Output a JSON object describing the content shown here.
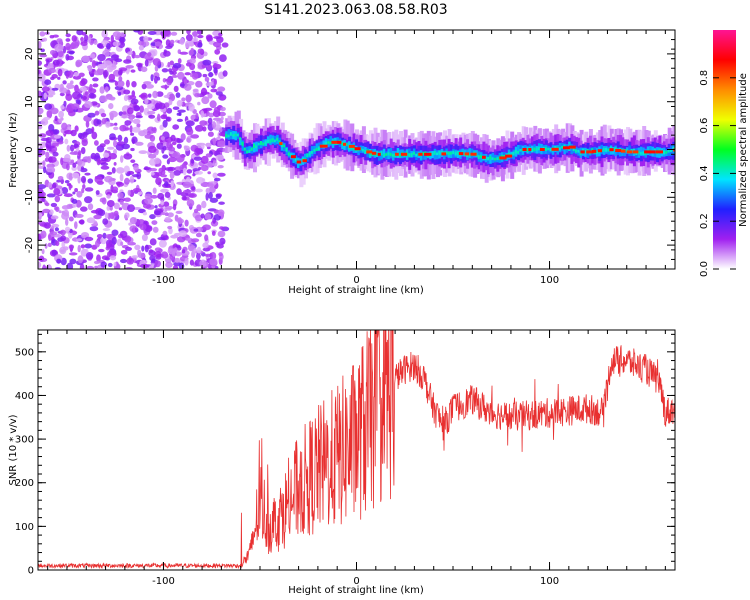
{
  "title": "S141.2023.063.08.58.R03",
  "chart_data": [
    {
      "type": "heatmap",
      "xlabel": "Height of straight line (km)",
      "ylabel": "Frequency (Hz)",
      "xlim": [
        -165,
        165
      ],
      "ylim": [
        -25,
        25
      ],
      "xticks": [
        -100,
        0,
        100
      ],
      "yticks": [
        -20,
        -10,
        0,
        10,
        20
      ],
      "noise_region_x": [
        -165,
        -68
      ],
      "ridge_frequency": {
        "x": [
          -68,
          -62,
          -58,
          -55,
          -52,
          -48,
          -45,
          -42,
          -38,
          -34,
          -30,
          -27,
          -24,
          -20,
          -15,
          -10,
          -5,
          0,
          5,
          10,
          20,
          30,
          40,
          50,
          60,
          64,
          68,
          72,
          76,
          80,
          85,
          90,
          100,
          110,
          115,
          120,
          130,
          140,
          150,
          160,
          165
        ],
        "y": [
          3,
          3,
          -0.5,
          0,
          1,
          1.5,
          2,
          2,
          0.5,
          -1.5,
          -3,
          -2,
          -0.5,
          0.5,
          1.5,
          1.5,
          0.8,
          0,
          -0.5,
          -1,
          -1,
          -1,
          -1,
          -0.8,
          -1,
          -1.5,
          -2,
          -2,
          -1.5,
          -1,
          0,
          0,
          0,
          0.5,
          -0.5,
          -0.5,
          0,
          -0.5,
          -0.5,
          -0.5,
          0
        ]
      },
      "colorbar": {
        "label": "Normalized spectral amplitude",
        "ticks": [
          "0.0",
          "0.2",
          "0.4",
          "0.6",
          "0.8"
        ],
        "range": [
          0,
          1
        ],
        "colors": [
          "#ffffff",
          "#a020f0",
          "#2020ff",
          "#00e5ff",
          "#00ff20",
          "#f0ff00",
          "#ff8c00",
          "#ff0000",
          "#ff1493"
        ]
      }
    },
    {
      "type": "line",
      "xlabel": "Height of straight line (km)",
      "ylabel": "SNR (10 * v/v)",
      "xlim": [
        -165,
        165
      ],
      "ylim": [
        0,
        550
      ],
      "xticks": [
        -100,
        0,
        100
      ],
      "yticks": [
        0,
        100,
        200,
        300,
        400,
        500
      ],
      "color": "#e83030",
      "envelope": {
        "x": [
          -165,
          -60,
          -55,
          -50,
          -45,
          -40,
          -30,
          -20,
          -10,
          0,
          10,
          20,
          25,
          30,
          35,
          40,
          45,
          50,
          60,
          70,
          80,
          90,
          100,
          110,
          120,
          128,
          132,
          140,
          150,
          157,
          160,
          165
        ],
        "y": [
          10,
          10,
          40,
          160,
          100,
          120,
          190,
          230,
          260,
          300,
          370,
          440,
          460,
          470,
          440,
          370,
          330,
          370,
          390,
          360,
          350,
          355,
          360,
          365,
          370,
          360,
          480,
          480,
          460,
          430,
          360,
          370
        ]
      }
    }
  ]
}
